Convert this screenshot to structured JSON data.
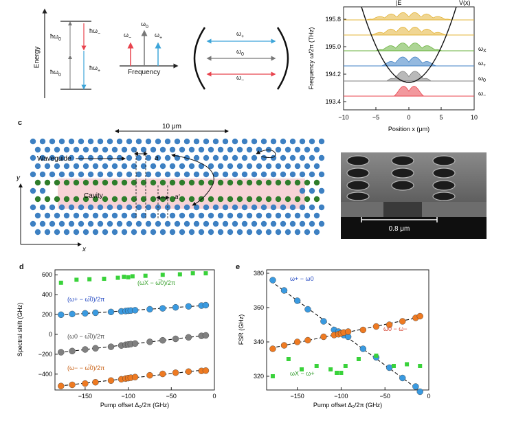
{
  "panel_a": {
    "energy_label": "Energy",
    "frequency_label": "Frequency",
    "hw0_top": "ħω",
    "hw0_bot": "ħω",
    "hw_minus": "ħω",
    "hw_plus": "ħω",
    "omega_minus": "ω",
    "omega_zero": "ω",
    "omega_plus": "ω",
    "sub_0": "0",
    "sub_minus": "−",
    "sub_plus": "+"
  },
  "panel_b": {
    "omega_plus": "ω",
    "omega_zero": "ω",
    "omega_minus": "ω",
    "sub_plus": "+",
    "sub_0": "0",
    "sub_minus": "−"
  },
  "panel_spectrum": {
    "title_left": "|E",
    "title_right": "V(x)",
    "ylabel": "Frequency ω/2π (THz)",
    "xlabel": "Position x (μm)",
    "yticks": [
      "195.8",
      "195.0",
      "194.2",
      "193.4"
    ],
    "xticks": [
      "−10",
      "−5",
      "0",
      "5",
      "10"
    ],
    "mode_labels": [
      "ω",
      "ω",
      "ω",
      "ω"
    ],
    "mode_subs": [
      "X",
      "+",
      "0",
      "−"
    ],
    "colors": {
      "red": "#e8434d",
      "gray": "#7f7f7f",
      "blue": "#3d7fc4",
      "green": "#6ab23e",
      "yellow": "#e3b43a"
    }
  },
  "panel_c": {
    "label": "c",
    "scale": "10 μm",
    "waveguide": "Waveguide",
    "cavity": "Cavity",
    "a": "a",
    "a_prime": "a′",
    "axis_y": "y",
    "axis_x": "x",
    "sem_scale": "0.8 μm"
  },
  "panel_d": {
    "label": "d",
    "ylabel": "Spectral shift (GHz)",
    "xlabel": "Pump offset Δ₀/2π (GHz)",
    "series_labels": [
      "(ωX − ω̅0)/2π",
      "(ω+ − ω̅0)/2π",
      "(ω0 − ω̅0)/2π",
      "(ω− − ω̅0)/2π"
    ],
    "chart_data": {
      "type": "scatter",
      "xlabel": "Pump offset Δ₀/2π (GHz)",
      "ylabel": "Spectral shift (GHz)",
      "xlim": [
        -185,
        0
      ],
      "ylim": [
        -560,
        650
      ],
      "xticks": [
        -150,
        -100,
        -50,
        0
      ],
      "yticks": [
        600,
        400,
        200,
        0,
        -200,
        -400
      ],
      "series": [
        {
          "name": "(ωX − ω̅0)/2π",
          "color": "#39d23a",
          "marker": "square",
          "x": [
            -178,
            -160,
            -145,
            -128,
            -112,
            -105,
            -100,
            -95,
            -80,
            -60,
            -40,
            -25,
            -10
          ],
          "y": [
            520,
            550,
            555,
            560,
            570,
            580,
            575,
            585,
            590,
            600,
            605,
            615,
            615
          ]
        },
        {
          "name": "(ω+ − ω̅0)/2π",
          "color": "#3a9ae0",
          "marker": "circle",
          "fit": true,
          "x": [
            -178,
            -165,
            -150,
            -138,
            -120,
            -108,
            -103,
            -100,
            -97,
            -92,
            -75,
            -60,
            -45,
            -30,
            -15,
            -10
          ],
          "y": [
            198,
            205,
            212,
            218,
            226,
            232,
            235,
            238,
            240,
            243,
            253,
            262,
            272,
            282,
            290,
            294
          ]
        },
        {
          "name": "(ω0 − ω̅0)/2π",
          "color": "#808080",
          "marker": "circle",
          "fit": true,
          "x": [
            -178,
            -165,
            -150,
            -138,
            -120,
            -108,
            -103,
            -100,
            -97,
            -92,
            -75,
            -60,
            -45,
            -30,
            -15,
            -10
          ],
          "y": [
            -180,
            -168,
            -152,
            -140,
            -125,
            -112,
            -105,
            -102,
            -98,
            -92,
            -75,
            -60,
            -45,
            -30,
            -15,
            -10
          ]
        },
        {
          "name": "(ω− − ω̅0)/2π",
          "color": "#ee7a22",
          "marker": "circle",
          "fit": true,
          "x": [
            -178,
            -165,
            -150,
            -138,
            -120,
            -108,
            -103,
            -100,
            -97,
            -92,
            -75,
            -60,
            -45,
            -30,
            -15,
            -10
          ],
          "y": [
            -520,
            -508,
            -495,
            -482,
            -465,
            -452,
            -445,
            -440,
            -436,
            -430,
            -412,
            -398,
            -386,
            -375,
            -368,
            -365
          ]
        }
      ]
    }
  },
  "panel_e": {
    "label": "e",
    "ylabel": "FSR (GHz)",
    "xlabel": "Pump offset Δ₀/2π (GHz)",
    "series_labels": [
      "ω+ − ω0",
      "ω0 − ω−",
      "ωX − ω+"
    ],
    "chart_data": {
      "type": "scatter",
      "xlabel": "Pump offset Δ₀/2π (GHz)",
      "ylabel": "FSR (GHz)",
      "xlim": [
        -185,
        0
      ],
      "ylim": [
        312,
        382
      ],
      "xticks": [
        -150,
        -100,
        -50,
        0
      ],
      "yticks": [
        380,
        360,
        340,
        320
      ],
      "series": [
        {
          "name": "ω+ − ω0",
          "color": "#3a9ae0",
          "marker": "circle",
          "fit": true,
          "x": [
            -178,
            -165,
            -150,
            -138,
            -120,
            -108,
            -103,
            -100,
            -97,
            -92,
            -75,
            -60,
            -45,
            -30,
            -15,
            -10
          ],
          "y": [
            376,
            370,
            364,
            359,
            352,
            347,
            346,
            345,
            344,
            343,
            336,
            331,
            325,
            319,
            314,
            311
          ]
        },
        {
          "name": "ω0 − ω−",
          "color": "#ee7a22",
          "marker": "circle",
          "fit": true,
          "x": [
            -178,
            -165,
            -150,
            -138,
            -120,
            -108,
            -103,
            -100,
            -97,
            -92,
            -75,
            -60,
            -45,
            -30,
            -15,
            -10
          ],
          "y": [
            336,
            338,
            340,
            341,
            343,
            344,
            344.5,
            345,
            345.5,
            346,
            347,
            349,
            350,
            352,
            354,
            355
          ]
        },
        {
          "name": "ωX − ω+",
          "color": "#39d23a",
          "marker": "square",
          "x": [
            -178,
            -160,
            -145,
            -128,
            -112,
            -105,
            -100,
            -95,
            -80,
            -60,
            -40,
            -25,
            -10
          ],
          "y": [
            320,
            330,
            324,
            326,
            324,
            322,
            322,
            326,
            330,
            332,
            326,
            327,
            326
          ]
        }
      ]
    }
  }
}
